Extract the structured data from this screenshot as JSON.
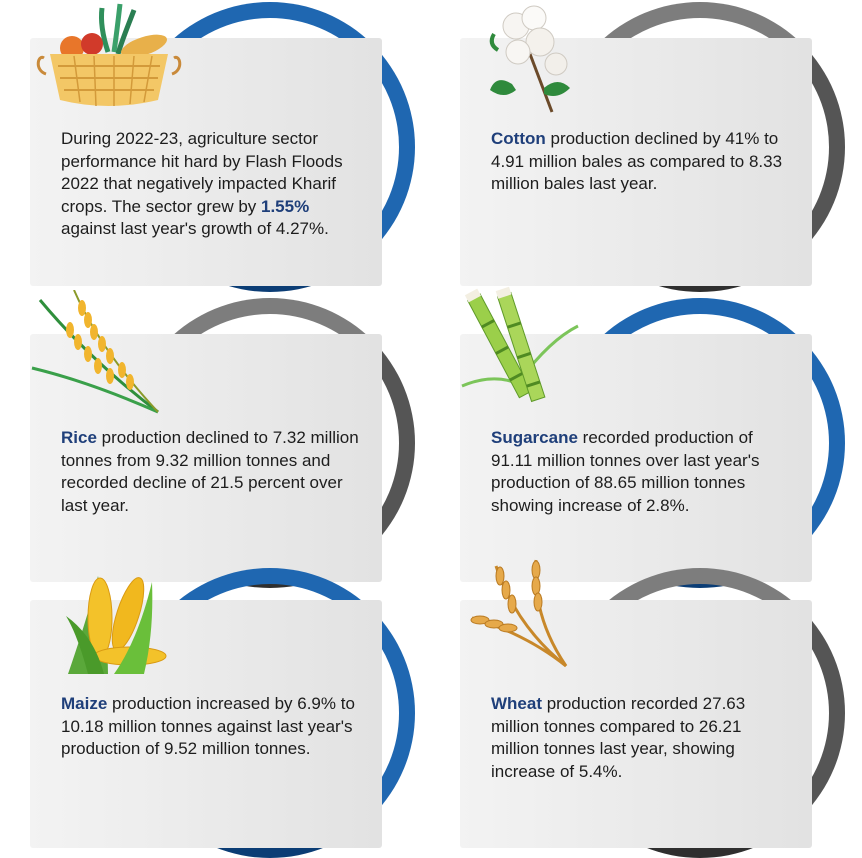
{
  "cards": [
    {
      "icon": "fruit-basket-icon",
      "pre": "During 2022-23, agriculture sector performance hit hard by Flash Floods 2022 that negatively impacted Kharif crops. The sector grew by ",
      "highlight": "1.55%",
      "post": " against last year's growth of 4.27%."
    },
    {
      "icon": "cotton-icon",
      "highlight": "Cotton",
      "post": " production declined by 41% to 4.91 million bales as compared to 8.33 million bales last year."
    },
    {
      "icon": "rice-plant-icon",
      "highlight": "Rice",
      "post": " production declined to 7.32 million tonnes from 9.32 million tonnes and recorded decline of 21.5 percent over last year."
    },
    {
      "icon": "sugarcane-icon",
      "highlight": "Sugarcane",
      "post": "  recorded production of 91.11 million tonnes over last year's production of 88.65 million tonnes showing increase of 2.8%."
    },
    {
      "icon": "maize-icon",
      "highlight": "Maize",
      "post": " production increased by 6.9% to 10.18 million tonnes against last year's production of 9.52 million tonnes."
    },
    {
      "icon": "wheat-icon",
      "highlight": "Wheat",
      "post": " production recorded 27.63 million tonnes compared to 26.21 million tonnes last year, showing increase of 5.4%."
    }
  ],
  "colors": {
    "keyword": "#1f3f7a",
    "ring_blue": "#1f67b1",
    "ring_gray": "#555555",
    "card_bg": "#ececec"
  }
}
